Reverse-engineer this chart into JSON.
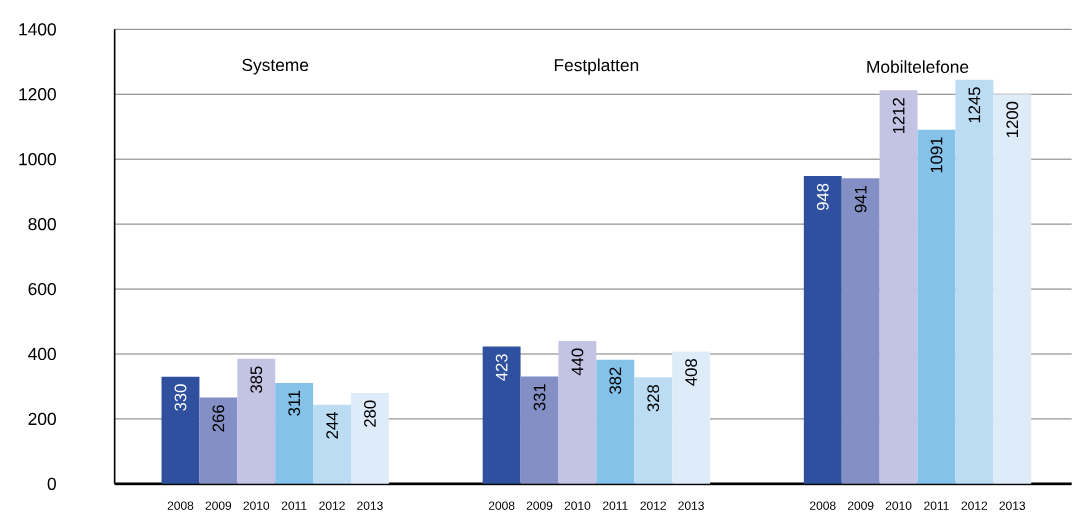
{
  "chart_data": {
    "type": "bar",
    "categories": [
      "Systeme",
      "Festplatten",
      "Mobiltelefone"
    ],
    "series": [
      {
        "name": "2008",
        "color": "#2e509e",
        "values": [
          330,
          423,
          948
        ]
      },
      {
        "name": "2009",
        "color": "#8490c5",
        "values": [
          266,
          331,
          941
        ]
      },
      {
        "name": "2010",
        "color": "#c3c4e4",
        "values": [
          385,
          440,
          1212
        ]
      },
      {
        "name": "2011",
        "color": "#84c2e9",
        "values": [
          311,
          382,
          1091
        ]
      },
      {
        "name": "2012",
        "color": "#bcdcf4",
        "values": [
          244,
          328,
          1245
        ]
      },
      {
        "name": "2013",
        "color": "#deebf9",
        "values": [
          280,
          408,
          1200
        ]
      }
    ],
    "ylim": [
      0,
      1400
    ],
    "yticks": [
      0,
      200,
      400,
      600,
      800,
      1000,
      1200,
      1400
    ],
    "grid": "y",
    "data_labels": true
  }
}
